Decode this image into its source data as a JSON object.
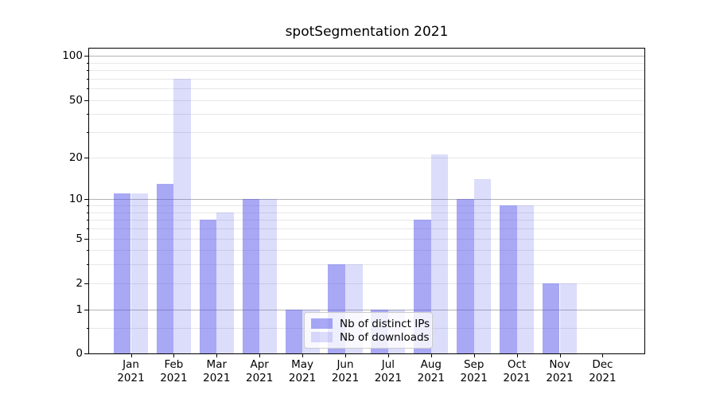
{
  "title": "spotSegmentation 2021",
  "chart_data": {
    "type": "bar",
    "title": "spotSegmentation 2021",
    "categories": [
      "Jan 2021",
      "Feb 2021",
      "Mar 2021",
      "Apr 2021",
      "May 2021",
      "Jun 2021",
      "Jul 2021",
      "Aug 2021",
      "Sep 2021",
      "Oct 2021",
      "Nov 2021",
      "Dec 2021"
    ],
    "x_months": [
      "Jan",
      "Feb",
      "Mar",
      "Apr",
      "May",
      "Jun",
      "Jul",
      "Aug",
      "Sep",
      "Oct",
      "Nov",
      "Dec"
    ],
    "x_year": "2021",
    "series": [
      {
        "name": "Nb of distinct IPs",
        "color": "rgba(82,82,235,0.5)",
        "color_hex_on_white": "#a8a8f5",
        "values": [
          11,
          13,
          7,
          10,
          1,
          3,
          1,
          7,
          10,
          9,
          2,
          0
        ]
      },
      {
        "name": "Nb of downloads",
        "color": "rgba(82,82,235,0.2)",
        "color_hex_on_white": "#dcdcfb",
        "values": [
          11,
          70,
          8,
          10,
          1,
          3,
          1,
          21,
          14,
          9,
          2,
          0
        ]
      }
    ],
    "yscale": "log1p",
    "ylim": [
      0,
      112
    ],
    "ytick_values": [
      100,
      50,
      20,
      10,
      5,
      2,
      1,
      0
    ],
    "ytick_labels": [
      "100",
      "50",
      "20",
      "10",
      "5",
      "2",
      "1",
      "0"
    ],
    "grid": true,
    "gridlines": {
      "major": [
        1,
        10,
        100
      ],
      "labeled_minor": [
        2,
        5,
        20,
        50
      ],
      "minor": [
        0.5,
        3,
        4,
        6,
        7,
        8,
        9,
        30,
        40,
        60,
        70,
        80,
        90
      ]
    },
    "legend": {
      "position": "lower center"
    }
  },
  "colors": {
    "background": "#ffffff",
    "grid_major": "#b3b3b3",
    "grid_minor": "#e7e7e7",
    "spine": "#000000",
    "text": "#000000",
    "legend_border": "#cccccc"
  }
}
